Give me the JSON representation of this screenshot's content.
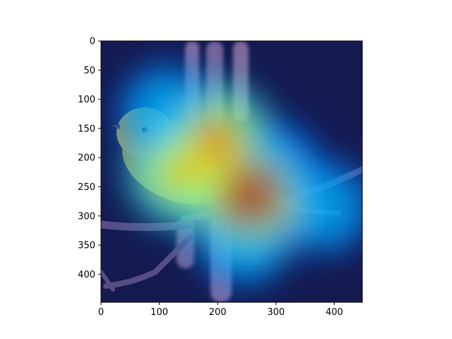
{
  "chart_data": {
    "type": "heatmap",
    "title": "",
    "xlabel": "",
    "ylabel": "",
    "xlim": [
      0,
      448
    ],
    "ylim": [
      448,
      0
    ],
    "x_ticks": [
      0,
      100,
      200,
      300,
      400
    ],
    "y_ticks": [
      0,
      50,
      100,
      150,
      200,
      250,
      300,
      350,
      400
    ],
    "y_axis_inverted": true,
    "grid": false,
    "colormap": "jet",
    "background_image": "photo of a yellow warbler bird perched on a twig with catkins",
    "activation_hotspots": [
      {
        "x": 255,
        "y": 265,
        "intensity": 1.0
      },
      {
        "x": 195,
        "y": 175,
        "intensity": 0.85
      },
      {
        "x": 140,
        "y": 225,
        "intensity": 0.75
      },
      {
        "x": 110,
        "y": 120,
        "intensity": 0.5
      },
      {
        "x": 300,
        "y": 215,
        "intensity": 0.45
      },
      {
        "x": 385,
        "y": 285,
        "intensity": 0.5
      },
      {
        "x": 245,
        "y": 340,
        "intensity": 0.5
      }
    ],
    "overlay_alpha": 0.55
  },
  "colors": {
    "background_dark": "#1c2340",
    "bird_yellow": "#e2c83a",
    "branch": "#7a6a8a",
    "catkin": "#c9a6bd"
  }
}
